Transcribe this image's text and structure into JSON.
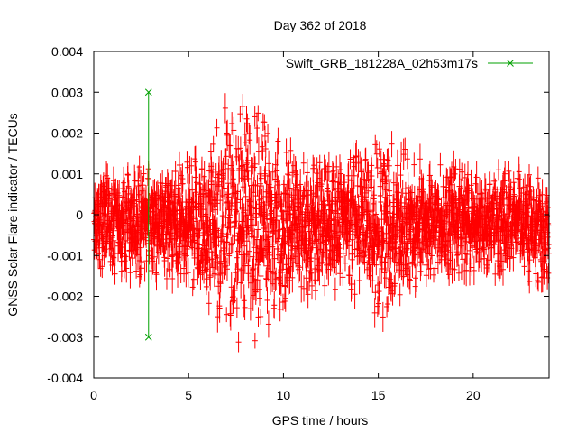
{
  "chart_data": {
    "type": "scatter",
    "title": "Day 362 of 2018",
    "xlabel": "GPS time / hours",
    "ylabel": "GNSS Solar Flare indicator / TECUs",
    "xlim": [
      0,
      24
    ],
    "ylim": [
      -0.004,
      0.004
    ],
    "x_ticks": [
      0,
      5,
      10,
      15,
      20
    ],
    "y_ticks": [
      -0.004,
      -0.003,
      -0.002,
      -0.001,
      0,
      0.001,
      0.002,
      0.003,
      0.004
    ],
    "x_tick_labels": [
      "0",
      "5",
      "10",
      "15",
      "20"
    ],
    "y_tick_labels": [
      "-0.004",
      "-0.003",
      "-0.002",
      "-0.001",
      "0",
      "0.001",
      "0.002",
      "0.003",
      "0.004"
    ],
    "grid": false,
    "legend_position": "top-right",
    "colors": {
      "series": "#ff0000",
      "event": "#00a000",
      "axis": "#000000"
    },
    "series": [
      {
        "style": "points-with-errorbars",
        "color": "#ff0000",
        "x_range": [
          0,
          24
        ],
        "envelope": {
          "x": [
            0,
            0.5,
            1,
            2,
            3,
            4,
            5,
            5.5,
            6,
            6.5,
            7,
            7.5,
            8,
            8.5,
            9,
            9.5,
            10,
            11,
            12,
            13,
            14,
            14.5,
            15,
            15.5,
            16,
            17,
            18,
            19,
            20,
            21,
            22,
            23,
            24
          ],
          "upper": [
            0.0009,
            0.0012,
            0.0011,
            0.0012,
            0.0012,
            0.0013,
            0.0014,
            0.0017,
            0.002,
            0.0024,
            0.0027,
            0.0029,
            0.003,
            0.0028,
            0.0025,
            0.002,
            0.0017,
            0.0015,
            0.0014,
            0.0014,
            0.0015,
            0.0017,
            0.0021,
            0.0023,
            0.0018,
            0.0014,
            0.0013,
            0.0012,
            0.0011,
            0.0011,
            0.0011,
            0.001,
            0.0008
          ],
          "lower": [
            -0.0012,
            -0.0015,
            -0.0015,
            -0.0015,
            -0.0016,
            -0.0017,
            -0.0019,
            -0.0021,
            -0.0024,
            -0.0027,
            -0.003,
            -0.0033,
            -0.0034,
            -0.0032,
            -0.0029,
            -0.0026,
            -0.0023,
            -0.002,
            -0.0019,
            -0.0019,
            -0.002,
            -0.0023,
            -0.0028,
            -0.0026,
            -0.0022,
            -0.0019,
            -0.0017,
            -0.0016,
            -0.0015,
            -0.0015,
            -0.0016,
            -0.0017,
            -0.0016
          ]
        }
      },
      {
        "name": "Swift_GRB_181228A_02h53m17s",
        "style": "vertical-line-with-cross-ends",
        "color": "#00a000",
        "x": 2.888,
        "y_range": [
          -0.003,
          0.003
        ]
      }
    ]
  }
}
